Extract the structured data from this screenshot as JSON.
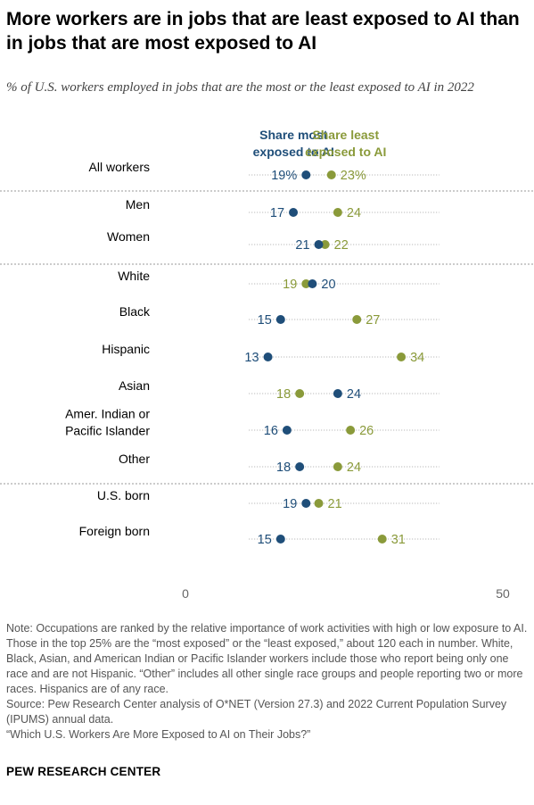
{
  "header": {
    "title": "More workers are in jobs that are least exposed to AI than in jobs that are most exposed to AI",
    "subtitle": "% of U.S. workers employed in jobs that are the most or the least exposed to AI in 2022"
  },
  "colors": {
    "most_exposed": "#1f4e79",
    "least_exposed": "#8a9a3a",
    "dotted_line": "#aaaaaa",
    "separator": "#999999"
  },
  "chart_data": {
    "type": "dot",
    "xlim": [
      0,
      50
    ],
    "x_ticks": [
      "0",
      "50"
    ],
    "legend_placement": "top",
    "series": [
      {
        "name": "Share most exposed to AI",
        "lines": [
          "Share most",
          "exposed to AI"
        ],
        "color": "#1f4e79"
      },
      {
        "name": "Share least exposed to AI",
        "lines": [
          "Share least",
          "exposed to AI"
        ],
        "color": "#8a9a3a"
      }
    ],
    "rows": [
      {
        "label": [
          "All workers"
        ],
        "most": 19,
        "least": 23,
        "most_label": "19%",
        "least_label": "23%"
      },
      {
        "label": [
          "Men"
        ],
        "most": 17,
        "least": 24,
        "most_label": "17",
        "least_label": "24"
      },
      {
        "label": [
          "Women"
        ],
        "most": 21,
        "least": 22,
        "most_label": "21",
        "least_label": "22"
      },
      {
        "label": [
          "White"
        ],
        "most": 20,
        "least": 19,
        "most_label": "20",
        "least_label": "19"
      },
      {
        "label": [
          "Black"
        ],
        "most": 15,
        "least": 27,
        "most_label": "15",
        "least_label": "27"
      },
      {
        "label": [
          "Hispanic"
        ],
        "most": 13,
        "least": 34,
        "most_label": "13",
        "least_label": "34"
      },
      {
        "label": [
          "Asian"
        ],
        "most": 24,
        "least": 18,
        "most_label": "24",
        "least_label": "18"
      },
      {
        "label": [
          "Amer. Indian or",
          "Pacific Islander"
        ],
        "most": 16,
        "least": 26,
        "most_label": "16",
        "least_label": "26"
      },
      {
        "label": [
          "Other"
        ],
        "most": 18,
        "least": 24,
        "most_label": "18",
        "least_label": "24"
      },
      {
        "label": [
          "U.S. born"
        ],
        "most": 19,
        "least": 21,
        "most_label": "19",
        "least_label": "21"
      },
      {
        "label": [
          "Foreign born"
        ],
        "most": 15,
        "least": 31,
        "most_label": "15",
        "least_label": "31"
      }
    ]
  },
  "footer": {
    "note": "Note: Occupations are ranked by the relative importance of work activities with high or low exposure to AI. Those in the top 25% are the “most exposed” or the “least exposed,” about 120 each in number. White, Black, Asian, and American Indian or Pacific Islander workers include those who report being only one race and are not Hispanic. “Other” includes all other single race groups and people reporting two or more races. Hispanics are of any race.",
    "source": "Source: Pew Research Center analysis of O*NET (Version 27.3) and 2022 Current Population Survey (IPUMS) annual data.",
    "report": "“Which U.S. Workers Are More Exposed to AI on Their Jobs?”",
    "brand": "PEW RESEARCH CENTER"
  }
}
